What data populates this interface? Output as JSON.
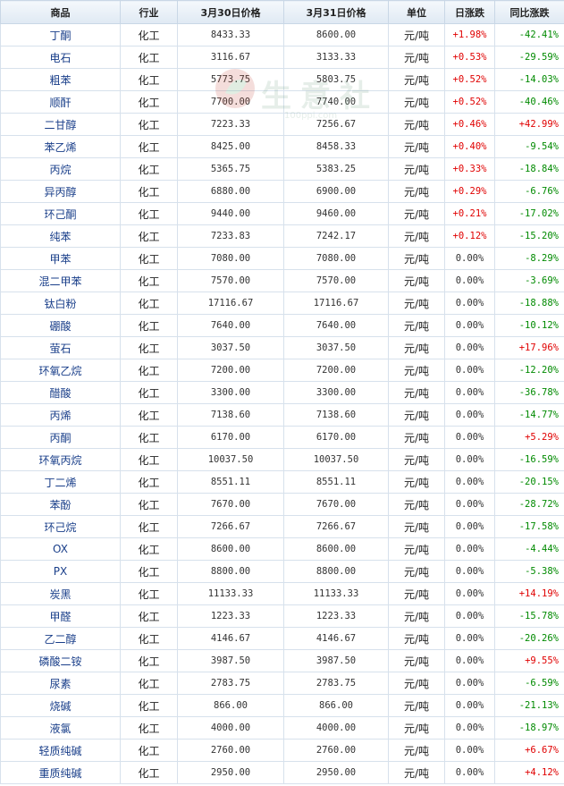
{
  "headers": [
    "商品",
    "行业",
    "3月30日价格",
    "3月31日价格",
    "单位",
    "日涨跌",
    "同比涨跌"
  ],
  "watermark": {
    "text": "生意社",
    "sub": "100ppi.com"
  },
  "rows": [
    {
      "name": "丁酮",
      "ind": "化工",
      "p1": "8433.33",
      "p2": "8600.00",
      "unit": "元/吨",
      "day": "+1.98%",
      "yoy": "-42.41%"
    },
    {
      "name": "电石",
      "ind": "化工",
      "p1": "3116.67",
      "p2": "3133.33",
      "unit": "元/吨",
      "day": "+0.53%",
      "yoy": "-29.59%"
    },
    {
      "name": "粗苯",
      "ind": "化工",
      "p1": "5773.75",
      "p2": "5803.75",
      "unit": "元/吨",
      "day": "+0.52%",
      "yoy": "-14.03%"
    },
    {
      "name": "顺酐",
      "ind": "化工",
      "p1": "7700.00",
      "p2": "7740.00",
      "unit": "元/吨",
      "day": "+0.52%",
      "yoy": "-40.46%"
    },
    {
      "name": "二甘醇",
      "ind": "化工",
      "p1": "7223.33",
      "p2": "7256.67",
      "unit": "元/吨",
      "day": "+0.46%",
      "yoy": "+42.99%"
    },
    {
      "name": "苯乙烯",
      "ind": "化工",
      "p1": "8425.00",
      "p2": "8458.33",
      "unit": "元/吨",
      "day": "+0.40%",
      "yoy": "-9.54%"
    },
    {
      "name": "丙烷",
      "ind": "化工",
      "p1": "5365.75",
      "p2": "5383.25",
      "unit": "元/吨",
      "day": "+0.33%",
      "yoy": "-18.84%"
    },
    {
      "name": "异丙醇",
      "ind": "化工",
      "p1": "6880.00",
      "p2": "6900.00",
      "unit": "元/吨",
      "day": "+0.29%",
      "yoy": "-6.76%"
    },
    {
      "name": "环己酮",
      "ind": "化工",
      "p1": "9440.00",
      "p2": "9460.00",
      "unit": "元/吨",
      "day": "+0.21%",
      "yoy": "-17.02%"
    },
    {
      "name": "纯苯",
      "ind": "化工",
      "p1": "7233.83",
      "p2": "7242.17",
      "unit": "元/吨",
      "day": "+0.12%",
      "yoy": "-15.20%"
    },
    {
      "name": "甲苯",
      "ind": "化工",
      "p1": "7080.00",
      "p2": "7080.00",
      "unit": "元/吨",
      "day": "0.00%",
      "yoy": "-8.29%"
    },
    {
      "name": "混二甲苯",
      "ind": "化工",
      "p1": "7570.00",
      "p2": "7570.00",
      "unit": "元/吨",
      "day": "0.00%",
      "yoy": "-3.69%"
    },
    {
      "name": "钛白粉",
      "ind": "化工",
      "p1": "17116.67",
      "p2": "17116.67",
      "unit": "元/吨",
      "day": "0.00%",
      "yoy": "-18.88%"
    },
    {
      "name": "硼酸",
      "ind": "化工",
      "p1": "7640.00",
      "p2": "7640.00",
      "unit": "元/吨",
      "day": "0.00%",
      "yoy": "-10.12%"
    },
    {
      "name": "萤石",
      "ind": "化工",
      "p1": "3037.50",
      "p2": "3037.50",
      "unit": "元/吨",
      "day": "0.00%",
      "yoy": "+17.96%"
    },
    {
      "name": "环氧乙烷",
      "ind": "化工",
      "p1": "7200.00",
      "p2": "7200.00",
      "unit": "元/吨",
      "day": "0.00%",
      "yoy": "-12.20%"
    },
    {
      "name": "醋酸",
      "ind": "化工",
      "p1": "3300.00",
      "p2": "3300.00",
      "unit": "元/吨",
      "day": "0.00%",
      "yoy": "-36.78%"
    },
    {
      "name": "丙烯",
      "ind": "化工",
      "p1": "7138.60",
      "p2": "7138.60",
      "unit": "元/吨",
      "day": "0.00%",
      "yoy": "-14.77%"
    },
    {
      "name": "丙酮",
      "ind": "化工",
      "p1": "6170.00",
      "p2": "6170.00",
      "unit": "元/吨",
      "day": "0.00%",
      "yoy": "+5.29%"
    },
    {
      "name": "环氧丙烷",
      "ind": "化工",
      "p1": "10037.50",
      "p2": "10037.50",
      "unit": "元/吨",
      "day": "0.00%",
      "yoy": "-16.59%"
    },
    {
      "name": "丁二烯",
      "ind": "化工",
      "p1": "8551.11",
      "p2": "8551.11",
      "unit": "元/吨",
      "day": "0.00%",
      "yoy": "-20.15%"
    },
    {
      "name": "苯酚",
      "ind": "化工",
      "p1": "7670.00",
      "p2": "7670.00",
      "unit": "元/吨",
      "day": "0.00%",
      "yoy": "-28.72%"
    },
    {
      "name": "环己烷",
      "ind": "化工",
      "p1": "7266.67",
      "p2": "7266.67",
      "unit": "元/吨",
      "day": "0.00%",
      "yoy": "-17.58%"
    },
    {
      "name": "OX",
      "ind": "化工",
      "p1": "8600.00",
      "p2": "8600.00",
      "unit": "元/吨",
      "day": "0.00%",
      "yoy": "-4.44%"
    },
    {
      "name": "PX",
      "ind": "化工",
      "p1": "8800.00",
      "p2": "8800.00",
      "unit": "元/吨",
      "day": "0.00%",
      "yoy": "-5.38%"
    },
    {
      "name": "炭黑",
      "ind": "化工",
      "p1": "11133.33",
      "p2": "11133.33",
      "unit": "元/吨",
      "day": "0.00%",
      "yoy": "+14.19%"
    },
    {
      "name": "甲醛",
      "ind": "化工",
      "p1": "1223.33",
      "p2": "1223.33",
      "unit": "元/吨",
      "day": "0.00%",
      "yoy": "-15.78%"
    },
    {
      "name": "乙二醇",
      "ind": "化工",
      "p1": "4146.67",
      "p2": "4146.67",
      "unit": "元/吨",
      "day": "0.00%",
      "yoy": "-20.26%"
    },
    {
      "name": "磷酸二铵",
      "ind": "化工",
      "p1": "3987.50",
      "p2": "3987.50",
      "unit": "元/吨",
      "day": "0.00%",
      "yoy": "+9.55%"
    },
    {
      "name": "尿素",
      "ind": "化工",
      "p1": "2783.75",
      "p2": "2783.75",
      "unit": "元/吨",
      "day": "0.00%",
      "yoy": "-6.59%"
    },
    {
      "name": "烧碱",
      "ind": "化工",
      "p1": "866.00",
      "p2": "866.00",
      "unit": "元/吨",
      "day": "0.00%",
      "yoy": "-21.13%"
    },
    {
      "name": "液氯",
      "ind": "化工",
      "p1": "4000.00",
      "p2": "4000.00",
      "unit": "元/吨",
      "day": "0.00%",
      "yoy": "-18.97%"
    },
    {
      "name": "轻质纯碱",
      "ind": "化工",
      "p1": "2760.00",
      "p2": "2760.00",
      "unit": "元/吨",
      "day": "0.00%",
      "yoy": "+6.67%"
    },
    {
      "name": "重质纯碱",
      "ind": "化工",
      "p1": "2950.00",
      "p2": "2950.00",
      "unit": "元/吨",
      "day": "0.00%",
      "yoy": "+4.12%"
    }
  ]
}
